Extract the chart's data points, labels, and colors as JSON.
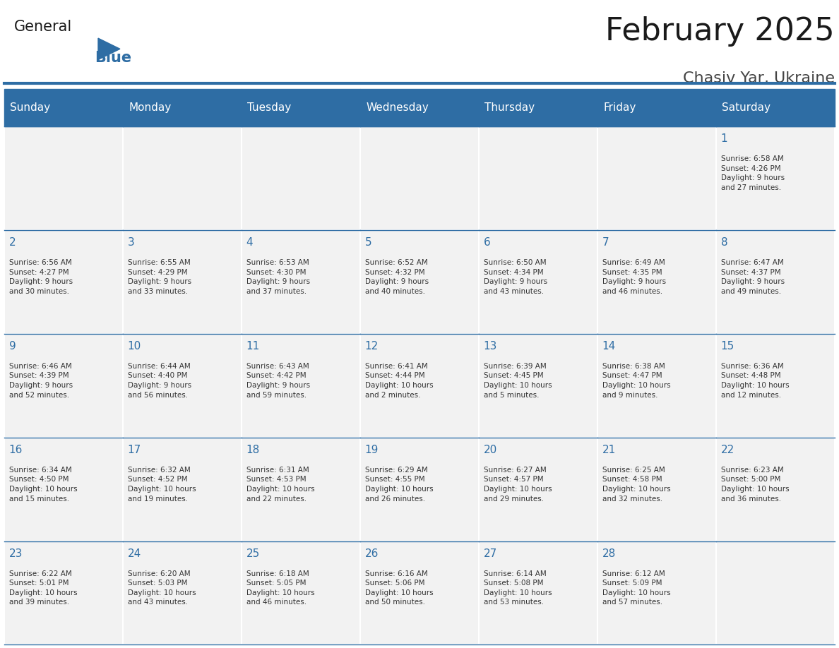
{
  "title": "February 2025",
  "subtitle": "Chasiv Yar, Ukraine",
  "header_bg": "#2E6DA4",
  "header_text": "#FFFFFF",
  "cell_bg": "#F2F2F2",
  "border_color": "#2E6DA4",
  "day_headers": [
    "Sunday",
    "Monday",
    "Tuesday",
    "Wednesday",
    "Thursday",
    "Friday",
    "Saturday"
  ],
  "title_color": "#1a1a1a",
  "subtitle_color": "#444444",
  "day_num_color": "#2E6DA4",
  "text_color": "#333333",
  "logo_general_color": "#1a1a1a",
  "logo_blue_color": "#2E6DA4",
  "calendar": [
    [
      {
        "day": "",
        "info": ""
      },
      {
        "day": "",
        "info": ""
      },
      {
        "day": "",
        "info": ""
      },
      {
        "day": "",
        "info": ""
      },
      {
        "day": "",
        "info": ""
      },
      {
        "day": "",
        "info": ""
      },
      {
        "day": "1",
        "info": "Sunrise: 6:58 AM\nSunset: 4:26 PM\nDaylight: 9 hours\nand 27 minutes."
      }
    ],
    [
      {
        "day": "2",
        "info": "Sunrise: 6:56 AM\nSunset: 4:27 PM\nDaylight: 9 hours\nand 30 minutes."
      },
      {
        "day": "3",
        "info": "Sunrise: 6:55 AM\nSunset: 4:29 PM\nDaylight: 9 hours\nand 33 minutes."
      },
      {
        "day": "4",
        "info": "Sunrise: 6:53 AM\nSunset: 4:30 PM\nDaylight: 9 hours\nand 37 minutes."
      },
      {
        "day": "5",
        "info": "Sunrise: 6:52 AM\nSunset: 4:32 PM\nDaylight: 9 hours\nand 40 minutes."
      },
      {
        "day": "6",
        "info": "Sunrise: 6:50 AM\nSunset: 4:34 PM\nDaylight: 9 hours\nand 43 minutes."
      },
      {
        "day": "7",
        "info": "Sunrise: 6:49 AM\nSunset: 4:35 PM\nDaylight: 9 hours\nand 46 minutes."
      },
      {
        "day": "8",
        "info": "Sunrise: 6:47 AM\nSunset: 4:37 PM\nDaylight: 9 hours\nand 49 minutes."
      }
    ],
    [
      {
        "day": "9",
        "info": "Sunrise: 6:46 AM\nSunset: 4:39 PM\nDaylight: 9 hours\nand 52 minutes."
      },
      {
        "day": "10",
        "info": "Sunrise: 6:44 AM\nSunset: 4:40 PM\nDaylight: 9 hours\nand 56 minutes."
      },
      {
        "day": "11",
        "info": "Sunrise: 6:43 AM\nSunset: 4:42 PM\nDaylight: 9 hours\nand 59 minutes."
      },
      {
        "day": "12",
        "info": "Sunrise: 6:41 AM\nSunset: 4:44 PM\nDaylight: 10 hours\nand 2 minutes."
      },
      {
        "day": "13",
        "info": "Sunrise: 6:39 AM\nSunset: 4:45 PM\nDaylight: 10 hours\nand 5 minutes."
      },
      {
        "day": "14",
        "info": "Sunrise: 6:38 AM\nSunset: 4:47 PM\nDaylight: 10 hours\nand 9 minutes."
      },
      {
        "day": "15",
        "info": "Sunrise: 6:36 AM\nSunset: 4:48 PM\nDaylight: 10 hours\nand 12 minutes."
      }
    ],
    [
      {
        "day": "16",
        "info": "Sunrise: 6:34 AM\nSunset: 4:50 PM\nDaylight: 10 hours\nand 15 minutes."
      },
      {
        "day": "17",
        "info": "Sunrise: 6:32 AM\nSunset: 4:52 PM\nDaylight: 10 hours\nand 19 minutes."
      },
      {
        "day": "18",
        "info": "Sunrise: 6:31 AM\nSunset: 4:53 PM\nDaylight: 10 hours\nand 22 minutes."
      },
      {
        "day": "19",
        "info": "Sunrise: 6:29 AM\nSunset: 4:55 PM\nDaylight: 10 hours\nand 26 minutes."
      },
      {
        "day": "20",
        "info": "Sunrise: 6:27 AM\nSunset: 4:57 PM\nDaylight: 10 hours\nand 29 minutes."
      },
      {
        "day": "21",
        "info": "Sunrise: 6:25 AM\nSunset: 4:58 PM\nDaylight: 10 hours\nand 32 minutes."
      },
      {
        "day": "22",
        "info": "Sunrise: 6:23 AM\nSunset: 5:00 PM\nDaylight: 10 hours\nand 36 minutes."
      }
    ],
    [
      {
        "day": "23",
        "info": "Sunrise: 6:22 AM\nSunset: 5:01 PM\nDaylight: 10 hours\nand 39 minutes."
      },
      {
        "day": "24",
        "info": "Sunrise: 6:20 AM\nSunset: 5:03 PM\nDaylight: 10 hours\nand 43 minutes."
      },
      {
        "day": "25",
        "info": "Sunrise: 6:18 AM\nSunset: 5:05 PM\nDaylight: 10 hours\nand 46 minutes."
      },
      {
        "day": "26",
        "info": "Sunrise: 6:16 AM\nSunset: 5:06 PM\nDaylight: 10 hours\nand 50 minutes."
      },
      {
        "day": "27",
        "info": "Sunrise: 6:14 AM\nSunset: 5:08 PM\nDaylight: 10 hours\nand 53 minutes."
      },
      {
        "day": "28",
        "info": "Sunrise: 6:12 AM\nSunset: 5:09 PM\nDaylight: 10 hours\nand 57 minutes."
      },
      {
        "day": "",
        "info": ""
      }
    ]
  ]
}
